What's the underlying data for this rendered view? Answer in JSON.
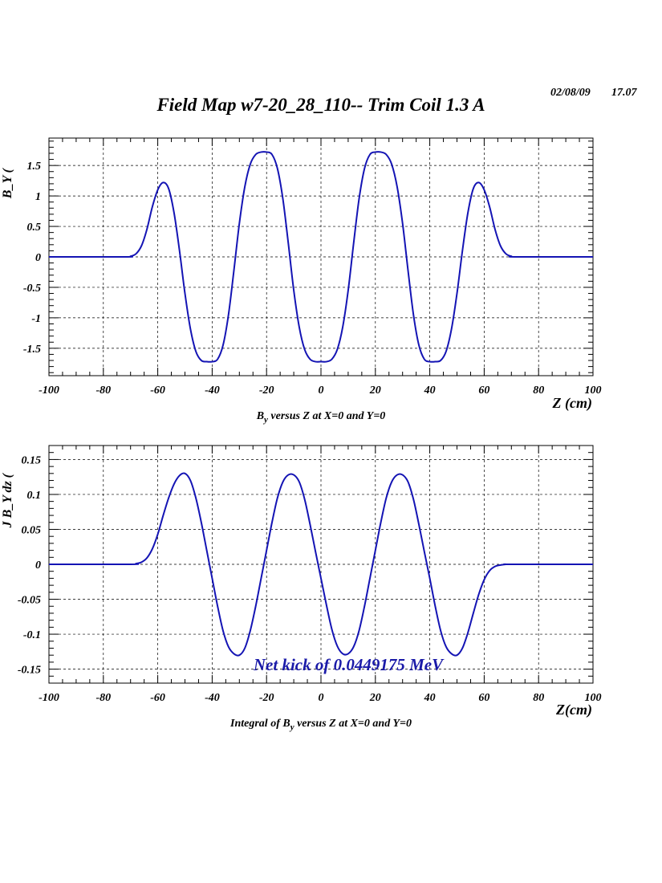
{
  "header": {
    "title": "Field Map w7-20_28_110-- Trim Coil 1.3 A",
    "date": "02/08/09",
    "time": "17.07"
  },
  "chart_data": [
    {
      "type": "line",
      "title": "",
      "xlabel": "Z (cm)",
      "ylabel_visible": "B_Y (",
      "caption": {
        "main": "B",
        "sub": "y",
        "rest": " versus Z at X=0 and Y=0"
      },
      "xlim": [
        -100,
        100
      ],
      "ylim": [
        -1.95,
        1.95
      ],
      "x_ticks": [
        -100,
        -80,
        -60,
        -40,
        -20,
        0,
        20,
        40,
        60,
        80,
        100
      ],
      "x_tick_labels": [
        "-100",
        "-80",
        "-60",
        "-40",
        "-20",
        "0",
        "20",
        "40",
        "60",
        "80",
        "100"
      ],
      "y_ticks": [
        -1.5,
        -1,
        -0.5,
        0,
        0.5,
        1,
        1.5
      ],
      "y_tick_labels": [
        "-1.5",
        "-1",
        "-0.5",
        "0",
        "0.5",
        "1",
        "1.5"
      ],
      "grid": true,
      "color": "#1414b4",
      "series": [
        {
          "x": [
            -100,
            -72,
            -70,
            -68,
            -66,
            -64,
            -62,
            -60,
            -58,
            -56,
            -54,
            -52,
            -50,
            -48,
            -46,
            -44,
            -42,
            -40,
            -38,
            -36,
            -34,
            -32,
            -30,
            -28,
            -26,
            -24,
            -22,
            -20,
            -18,
            -16,
            -14,
            -12,
            -10,
            -8,
            -6,
            -4,
            -2,
            0,
            2,
            4,
            6,
            8,
            10,
            12,
            14,
            16,
            18,
            20,
            22,
            24,
            26,
            28,
            30,
            32,
            34,
            36,
            38,
            40,
            42,
            44,
            46,
            48,
            50,
            52,
            54,
            56,
            58,
            60,
            62,
            64,
            66,
            68,
            70,
            72,
            100
          ],
          "y": [
            0,
            0,
            0.01,
            0.05,
            0.18,
            0.45,
            0.82,
            1.1,
            1.22,
            1.12,
            0.72,
            0.1,
            -0.6,
            -1.18,
            -1.55,
            -1.7,
            -1.72,
            -1.72,
            -1.68,
            -1.45,
            -0.95,
            -0.22,
            0.55,
            1.15,
            1.52,
            1.68,
            1.72,
            1.72,
            1.68,
            1.45,
            0.95,
            0.22,
            -0.55,
            -1.15,
            -1.52,
            -1.68,
            -1.72,
            -1.72,
            -1.72,
            -1.68,
            -1.52,
            -1.15,
            -0.55,
            0.22,
            0.95,
            1.45,
            1.68,
            1.72,
            1.72,
            1.68,
            1.52,
            1.15,
            0.55,
            -0.22,
            -0.95,
            -1.45,
            -1.68,
            -1.72,
            -1.72,
            -1.7,
            -1.55,
            -1.18,
            -0.6,
            0.1,
            0.72,
            1.12,
            1.22,
            1.1,
            0.82,
            0.45,
            0.18,
            0.05,
            0.01,
            0,
            0
          ]
        }
      ]
    },
    {
      "type": "line",
      "title": "",
      "xlabel": "Z(cm)",
      "ylabel_visible": "J B_Y dz (",
      "caption": {
        "main": "Integral of B",
        "sub": "y",
        "rest": " versus Z at X=0 and Y=0"
      },
      "annotation": "Net kick of 0.0449175 MeV",
      "xlim": [
        -100,
        100
      ],
      "ylim": [
        -0.17,
        0.17
      ],
      "x_ticks": [
        -100,
        -80,
        -60,
        -40,
        -20,
        0,
        20,
        40,
        60,
        80,
        100
      ],
      "x_tick_labels": [
        "-100",
        "-80",
        "-60",
        "-40",
        "-20",
        "0",
        "20",
        "40",
        "60",
        "80",
        "100"
      ],
      "y_ticks": [
        -0.15,
        -0.1,
        -0.05,
        0,
        0.05,
        0.1,
        0.15
      ],
      "y_tick_labels": [
        "-0.15",
        "-0.1",
        "-0.05",
        "0",
        "0.05",
        "0.1",
        "0.15"
      ],
      "grid": true,
      "color": "#1414b4",
      "series": [
        {
          "x": [
            -100,
            -70,
            -68,
            -66,
            -64,
            -62,
            -60,
            -58,
            -56,
            -54,
            -52,
            -50,
            -48,
            -46,
            -44,
            -42,
            -40,
            -38,
            -36,
            -34,
            -32,
            -30,
            -28,
            -26,
            -24,
            -22,
            -20,
            -18,
            -16,
            -14,
            -12,
            -10,
            -8,
            -6,
            -4,
            -2,
            0,
            2,
            4,
            6,
            8,
            10,
            12,
            14,
            16,
            18,
            20,
            22,
            24,
            26,
            28,
            30,
            32,
            34,
            36,
            38,
            40,
            42,
            44,
            46,
            48,
            50,
            52,
            54,
            56,
            58,
            60,
            62,
            64,
            66,
            68,
            70,
            100
          ],
          "y": [
            0,
            0,
            0.001,
            0.003,
            0.009,
            0.022,
            0.043,
            0.07,
            0.095,
            0.115,
            0.127,
            0.13,
            0.12,
            0.095,
            0.06,
            0.02,
            -0.02,
            -0.06,
            -0.095,
            -0.118,
            -0.128,
            -0.13,
            -0.12,
            -0.095,
            -0.06,
            -0.02,
            0.02,
            0.06,
            0.095,
            0.118,
            0.128,
            0.128,
            0.118,
            0.093,
            0.057,
            0.018,
            -0.02,
            -0.058,
            -0.093,
            -0.117,
            -0.128,
            -0.128,
            -0.118,
            -0.095,
            -0.06,
            -0.02,
            0.02,
            0.06,
            0.095,
            0.118,
            0.128,
            0.128,
            0.118,
            0.093,
            0.057,
            0.018,
            -0.02,
            -0.06,
            -0.095,
            -0.118,
            -0.128,
            -0.13,
            -0.12,
            -0.098,
            -0.07,
            -0.043,
            -0.022,
            -0.009,
            -0.003,
            -0.001,
            0,
            0,
            0
          ]
        }
      ]
    }
  ]
}
